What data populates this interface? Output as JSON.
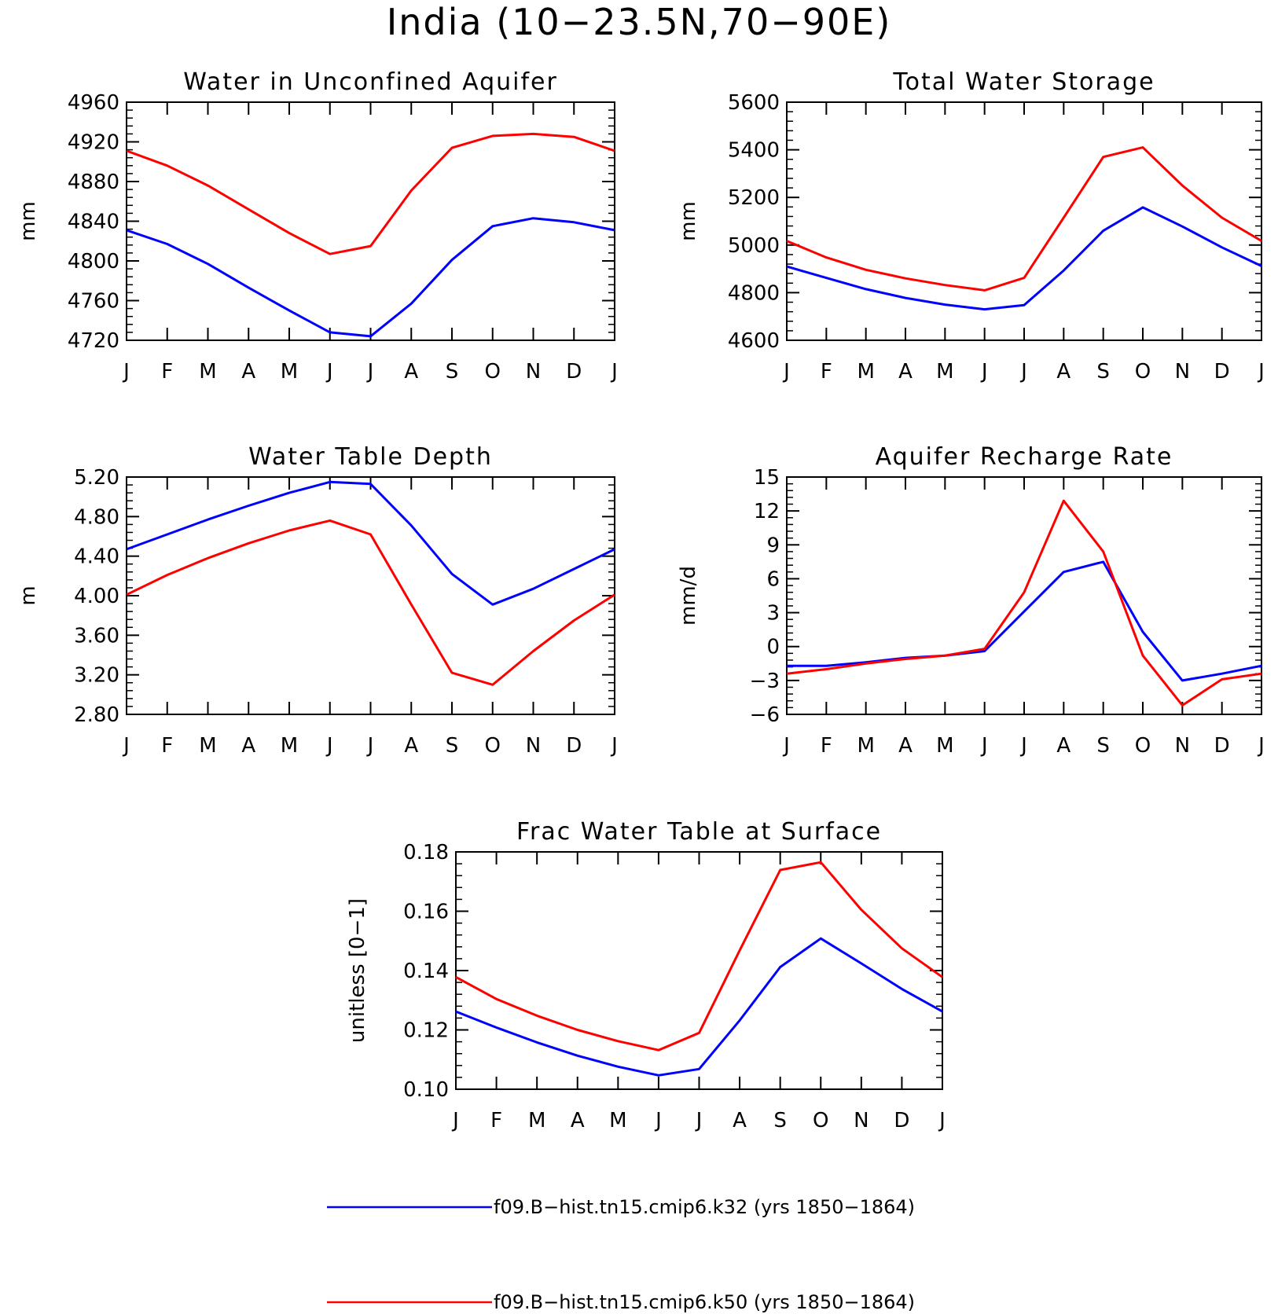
{
  "figure": {
    "title": "India (10−23.5N,70−90E)"
  },
  "legend": [
    {
      "name": "f09.B−hist.tn15.cmip6.k32 (yrs 1850−1864)",
      "color": "#0000ff"
    },
    {
      "name": "f09.B−hist.tn15.cmip6.k50 (yrs 1850−1864)",
      "color": "#ff0000"
    }
  ],
  "chart_data": [
    {
      "type": "line",
      "title": "Water in Unconfined Aquifer",
      "ylabel": "mm",
      "xlabel": "",
      "categories": [
        "J",
        "F",
        "M",
        "A",
        "M",
        "J",
        "J",
        "A",
        "S",
        "O",
        "N",
        "D",
        "J"
      ],
      "ylim": [
        4720,
        4960
      ],
      "yticks": [
        4720,
        4760,
        4800,
        4840,
        4880,
        4920,
        4960
      ],
      "ytick_labels": [
        "4720",
        "4760",
        "4800",
        "4840",
        "4880",
        "4920",
        "4960"
      ],
      "series": [
        {
          "color": "#0000ff",
          "values": [
            4831,
            4817,
            4797,
            4773,
            4750,
            4728,
            4724,
            4757,
            4801,
            4835,
            4843,
            4839,
            4831
          ]
        },
        {
          "color": "#ff0000",
          "values": [
            4911,
            4896,
            4876,
            4852,
            4828,
            4807,
            4815,
            4871,
            4914,
            4926,
            4928,
            4925,
            4911
          ]
        }
      ]
    },
    {
      "type": "line",
      "title": "Total Water Storage",
      "ylabel": "mm",
      "xlabel": "",
      "categories": [
        "J",
        "F",
        "M",
        "A",
        "M",
        "J",
        "J",
        "A",
        "S",
        "O",
        "N",
        "D",
        "J"
      ],
      "ylim": [
        4600,
        5600
      ],
      "yticks": [
        4600,
        4800,
        5000,
        5200,
        5400,
        5600
      ],
      "ytick_labels": [
        "4600",
        "4800",
        "5000",
        "5200",
        "5400",
        "5600"
      ],
      "series": [
        {
          "color": "#0000ff",
          "values": [
            4910,
            4862,
            4815,
            4778,
            4750,
            4730,
            4748,
            4893,
            5060,
            5158,
            5078,
            4990,
            4912
          ]
        },
        {
          "color": "#ff0000",
          "values": [
            5017,
            4948,
            4896,
            4860,
            4832,
            4810,
            4862,
            5115,
            5370,
            5410,
            5250,
            5115,
            5017
          ]
        }
      ]
    },
    {
      "type": "line",
      "title": "Water Table Depth",
      "ylabel": "m",
      "xlabel": "",
      "categories": [
        "J",
        "F",
        "M",
        "A",
        "M",
        "J",
        "J",
        "A",
        "S",
        "O",
        "N",
        "D",
        "J"
      ],
      "ylim": [
        2.8,
        5.2
      ],
      "yticks": [
        2.8,
        3.2,
        3.6,
        4.0,
        4.4,
        4.8,
        5.2
      ],
      "ytick_labels": [
        "2.80",
        "3.20",
        "3.60",
        "4.00",
        "4.40",
        "4.80",
        "5.20"
      ],
      "series": [
        {
          "color": "#0000ff",
          "values": [
            4.47,
            4.62,
            4.77,
            4.91,
            5.04,
            5.15,
            5.13,
            4.71,
            4.22,
            3.91,
            4.07,
            4.27,
            4.47
          ]
        },
        {
          "color": "#ff0000",
          "values": [
            4.01,
            4.21,
            4.38,
            4.53,
            4.66,
            4.76,
            4.62,
            3.91,
            3.22,
            3.1,
            3.44,
            3.75,
            4.01
          ]
        }
      ]
    },
    {
      "type": "line",
      "title": "Aquifer Recharge Rate",
      "ylabel": "mm/d",
      "xlabel": "",
      "categories": [
        "J",
        "F",
        "M",
        "A",
        "M",
        "J",
        "J",
        "A",
        "S",
        "O",
        "N",
        "D",
        "J"
      ],
      "ylim": [
        -6,
        15
      ],
      "yticks": [
        -6,
        -3,
        0,
        3,
        6,
        9,
        12,
        15
      ],
      "ytick_labels": [
        "−6",
        "−3",
        "0",
        "3",
        "6",
        "9",
        "12",
        "15"
      ],
      "series": [
        {
          "color": "#0000ff",
          "values": [
            -1.7,
            -1.7,
            -1.4,
            -1.0,
            -0.8,
            -0.4,
            3.1,
            6.6,
            7.5,
            1.3,
            -3.0,
            -2.4,
            -1.7
          ]
        },
        {
          "color": "#ff0000",
          "values": [
            -2.4,
            -2.0,
            -1.5,
            -1.1,
            -0.8,
            -0.2,
            4.8,
            12.9,
            8.4,
            -0.8,
            -5.2,
            -2.9,
            -2.4
          ]
        }
      ]
    },
    {
      "type": "line",
      "title": "Frac Water Table at Surface",
      "ylabel": "unitless [0−1]",
      "xlabel": "",
      "categories": [
        "J",
        "F",
        "M",
        "A",
        "M",
        "J",
        "J",
        "A",
        "S",
        "O",
        "N",
        "D",
        "J"
      ],
      "ylim": [
        0.1,
        0.18
      ],
      "yticks": [
        0.1,
        0.12,
        0.14,
        0.16,
        0.18
      ],
      "ytick_labels": [
        "0.10",
        "0.12",
        "0.14",
        "0.16",
        "0.18"
      ],
      "series": [
        {
          "color": "#0000ff",
          "values": [
            0.1262,
            0.1208,
            0.1158,
            0.1113,
            0.1076,
            0.1047,
            0.1068,
            0.1232,
            0.1412,
            0.1508,
            0.1424,
            0.1338,
            0.1262
          ]
        },
        {
          "color": "#ff0000",
          "values": [
            0.1378,
            0.1304,
            0.1248,
            0.12,
            0.1162,
            0.1132,
            0.119,
            0.1468,
            0.1739,
            0.1765,
            0.1605,
            0.1475,
            0.1378
          ]
        }
      ]
    }
  ]
}
